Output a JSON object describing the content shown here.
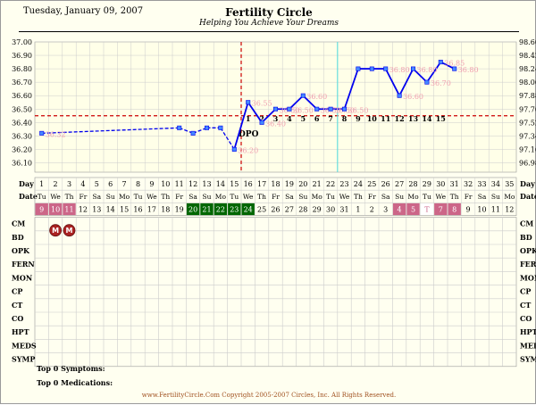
{
  "header": {
    "date": "Tuesday, January 09, 2007",
    "title": "Fertility Circle",
    "subtitle": "Helping You Achieve Your Dreams"
  },
  "chart_data": {
    "type": "line",
    "title": "Fertility Circle",
    "subtitle": "Helping You Achieve Your Dreams",
    "y_left_unit": "°C",
    "y_right_unit": "°F",
    "y_left_ticks": [
      "37.00",
      "36.90",
      "36.80",
      "36.70",
      "36.60",
      "36.50",
      "36.40",
      "36.30",
      "36.20",
      "36.10"
    ],
    "y_right_ticks": [
      "98.60",
      "98.42",
      "98.24",
      "98.06",
      "97.88",
      "97.70",
      "97.52",
      "97.34",
      "97.16",
      "96.98"
    ],
    "ylim": [
      36.03,
      37.0
    ],
    "coverline": 36.45,
    "coverline_label_day": 15,
    "ovulation_marker_day": 15,
    "ovulation_label": "DPO",
    "second_marker_day": 22,
    "temps": [
      {
        "day": 1,
        "temp": 36.32,
        "label": "36.32",
        "style": "dashed"
      },
      {
        "day": 11,
        "temp": 36.36,
        "label": "",
        "style": "dashed"
      },
      {
        "day": 12,
        "temp": 36.32,
        "label": "",
        "style": "dashed"
      },
      {
        "day": 13,
        "temp": 36.36,
        "label": "",
        "style": "dashed"
      },
      {
        "day": 14,
        "temp": 36.36,
        "label": "",
        "style": "dashed"
      },
      {
        "day": 15,
        "temp": 36.2,
        "label": "36.20",
        "style": "dashed"
      },
      {
        "day": 16,
        "temp": 36.55,
        "label": "36.55",
        "style": "solid"
      },
      {
        "day": 17,
        "temp": 36.4,
        "label": "36.40",
        "style": "solid"
      },
      {
        "day": 18,
        "temp": 36.5,
        "label": "36.50",
        "style": "solid"
      },
      {
        "day": 19,
        "temp": 36.5,
        "label": "36.50",
        "style": "solid"
      },
      {
        "day": 20,
        "temp": 36.6,
        "label": "36.60",
        "style": "solid"
      },
      {
        "day": 21,
        "temp": 36.5,
        "label": "36.50",
        "style": "solid"
      },
      {
        "day": 22,
        "temp": 36.5,
        "label": "36.50",
        "style": "solid"
      },
      {
        "day": 23,
        "temp": 36.5,
        "label": "36.50",
        "style": "solid"
      },
      {
        "day": 24,
        "temp": 36.8,
        "label": "",
        "style": "solid"
      },
      {
        "day": 25,
        "temp": 36.8,
        "label": "",
        "style": "solid"
      },
      {
        "day": 26,
        "temp": 36.8,
        "label": "36.80",
        "style": "solid"
      },
      {
        "day": 27,
        "temp": 36.6,
        "label": "36.60",
        "style": "solid"
      },
      {
        "day": 28,
        "temp": 36.8,
        "label": "36.80",
        "style": "solid"
      },
      {
        "day": 29,
        "temp": 36.7,
        "label": "36.70",
        "style": "solid"
      },
      {
        "day": 30,
        "temp": 36.85,
        "label": "36.85",
        "style": "solid"
      },
      {
        "day": 31,
        "temp": 36.8,
        "label": "36.80",
        "style": "solid"
      }
    ],
    "dpo_numbers": [
      {
        "day": 16,
        "label": "1"
      },
      {
        "day": 17,
        "label": "2"
      },
      {
        "day": 18,
        "label": "3"
      },
      {
        "day": 19,
        "label": "4"
      },
      {
        "day": 20,
        "label": "5"
      },
      {
        "day": 21,
        "label": "6"
      },
      {
        "day": 22,
        "label": "7"
      },
      {
        "day": 23,
        "label": "8"
      },
      {
        "day": 24,
        "label": "9"
      },
      {
        "day": 25,
        "label": "10"
      },
      {
        "day": 26,
        "label": "11"
      },
      {
        "day": 27,
        "label": "12"
      },
      {
        "day": 28,
        "label": "13"
      },
      {
        "day": 29,
        "label": "14"
      },
      {
        "day": 30,
        "label": "15"
      }
    ]
  },
  "table": {
    "day_label": "Day",
    "date_label": "Date",
    "days": [
      "1",
      "2",
      "3",
      "4",
      "5",
      "6",
      "7",
      "8",
      "9",
      "10",
      "11",
      "12",
      "13",
      "14",
      "15",
      "16",
      "17",
      "18",
      "19",
      "20",
      "21",
      "22",
      "23",
      "24",
      "25",
      "26",
      "27",
      "28",
      "29",
      "30",
      "31",
      "32",
      "33",
      "34",
      "35"
    ],
    "weekdays": [
      "Tu",
      "We",
      "Th",
      "Fr",
      "Sa",
      "Su",
      "Mo",
      "Tu",
      "We",
      "Th",
      "Fr",
      "Sa",
      "Su",
      "Mo",
      "Tu",
      "We",
      "Th",
      "Fr",
      "Sa",
      "Su",
      "Mo",
      "Tu",
      "We",
      "Th",
      "Fr",
      "Sa",
      "Su",
      "Mo",
      "Tu",
      "We",
      "Th",
      "Fr",
      "Sa",
      "Su",
      "Mo"
    ],
    "dates": [
      "9",
      "10",
      "11",
      "12",
      "13",
      "14",
      "15",
      "16",
      "17",
      "18",
      "19",
      "20",
      "21",
      "22",
      "23",
      "24",
      "25",
      "26",
      "27",
      "28",
      "29",
      "30",
      "31",
      "1",
      "2",
      "3",
      "4",
      "5",
      "T",
      "7",
      "8",
      "9",
      "10",
      "11",
      "12"
    ],
    "date_styles": [
      "pink",
      "pink",
      "pink",
      "",
      "",
      "",
      "",
      "",
      "",
      "",
      "",
      "green",
      "green",
      "green",
      "green",
      "green",
      "",
      "",
      "",
      "",
      "",
      "",
      "",
      "",
      "",
      "",
      "pink",
      "pink",
      "today",
      "pink",
      "pink",
      "",
      "",
      "",
      ""
    ],
    "bd_marks": [
      {
        "day": 2,
        "label": "M"
      },
      {
        "day": 3,
        "label": "M"
      }
    ],
    "symptom_rows": [
      "CM",
      "BD",
      "OPK",
      "FERN",
      "MON",
      "CP",
      "CT",
      "CO",
      "HPT",
      "MEDS",
      "SYMP"
    ]
  },
  "top_symptoms": "Top 0 Symptoms:",
  "top_medications": "Top 0 Medications:",
  "footer": "www.FertilityCircle.Com Copyright 2005-2007 Circles, Inc. All Rights Reserved.",
  "colors": {
    "line": "#0000ee",
    "coverline": "#cc0000",
    "marker2": "#66dddd",
    "label": "#f0a0b0",
    "grid": "#cccccc",
    "pink": "#cc6688",
    "green": "#006600",
    "circle": "#aa2222",
    "footer": "#a05020"
  }
}
